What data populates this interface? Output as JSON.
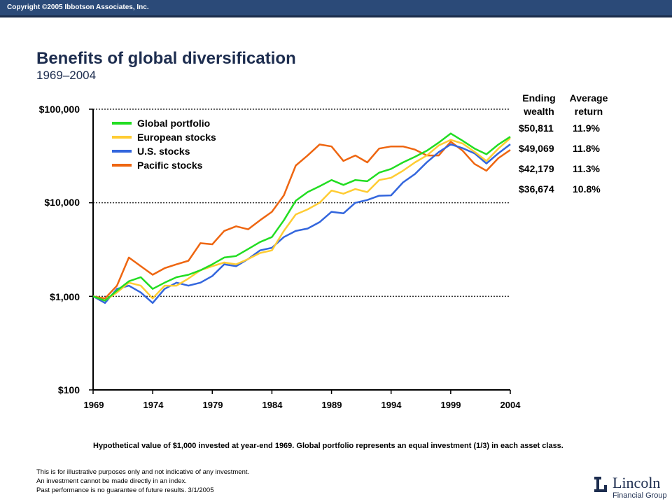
{
  "header": {
    "copyright": "Copyright ©2005 Ibbotson Associates, Inc."
  },
  "title": "Benefits of global diversification",
  "subtitle": "1969–2004",
  "table": {
    "col1": [
      "Ending",
      "wealth"
    ],
    "col2": [
      "Average",
      "return"
    ],
    "rows": [
      {
        "wealth": "$50,811",
        "ret": "11.9%"
      },
      {
        "wealth": "$49,069",
        "ret": "11.8%"
      },
      {
        "wealth": "$42,179",
        "ret": "11.3%"
      },
      {
        "wealth": "$36,674",
        "ret": "10.8%"
      }
    ]
  },
  "legend": [
    {
      "label": "Global portfolio",
      "color": "#22dd22"
    },
    {
      "label": "European stocks",
      "color": "#ffcc33"
    },
    {
      "label": "U.S. stocks",
      "color": "#3366dd"
    },
    {
      "label": "Pacific stocks",
      "color": "#ee6611"
    }
  ],
  "caption": "Hypothetical value of $1,000 invested at year-end 1969. Global portfolio represents an equal investment (1/3) in each asset class.",
  "notes": [
    "This is for illustrative purposes only and not indicative of any investment.",
    "An investment cannot be made directly in an index.",
    "Past performance is no guarantee of future results. 3/1/2005"
  ],
  "logo": {
    "name": "Lincoln",
    "sub": "Financial Group"
  },
  "chart_data": {
    "type": "line",
    "title": "Benefits of global diversification",
    "xlabel": "",
    "ylabel": "",
    "y_scale": "log",
    "ylim": [
      100,
      100000
    ],
    "xlim": [
      1969,
      2004
    ],
    "y_ticks": [
      "$100",
      "$1,000",
      "$10,000",
      "$100,000"
    ],
    "y_tick_values": [
      100,
      1000,
      10000,
      100000
    ],
    "x_ticks": [
      "1969",
      "1974",
      "1979",
      "1984",
      "1989",
      "1994",
      "1999",
      "2004"
    ],
    "x_tick_values": [
      1969,
      1974,
      1979,
      1984,
      1989,
      1994,
      1999,
      2004
    ],
    "grid": "dotted horizontal at $1,000, $10,000, $100,000",
    "legend_position": "top-left",
    "series": [
      {
        "name": "Global portfolio",
        "color": "#22dd22",
        "x": [
          1969,
          1970,
          1971,
          1972,
          1973,
          1974,
          1975,
          1976,
          1977,
          1978,
          1979,
          1980,
          1981,
          1982,
          1983,
          1984,
          1985,
          1986,
          1987,
          1988,
          1989,
          1990,
          1991,
          1992,
          1993,
          1994,
          1995,
          1996,
          1997,
          1998,
          1999,
          2000,
          2001,
          2002,
          2003,
          2004
        ],
        "y": [
          1000,
          900,
          1150,
          1450,
          1600,
          1200,
          1400,
          1600,
          1700,
          1900,
          2200,
          2600,
          2700,
          3200,
          3800,
          4300,
          6500,
          10500,
          13000,
          15000,
          17500,
          15500,
          17500,
          17000,
          21000,
          23000,
          27000,
          31000,
          36000,
          44000,
          55000,
          46000,
          38000,
          33000,
          42000,
          50811
        ]
      },
      {
        "name": "European stocks",
        "color": "#ffcc33",
        "x": [
          1969,
          1970,
          1971,
          1972,
          1973,
          1974,
          1975,
          1976,
          1977,
          1978,
          1979,
          1980,
          1981,
          1982,
          1983,
          1984,
          1985,
          1986,
          1987,
          1988,
          1989,
          1990,
          1991,
          1992,
          1993,
          1994,
          1995,
          1996,
          1997,
          1998,
          1999,
          2000,
          2001,
          2002,
          2003,
          2004
        ],
        "y": [
          1000,
          900,
          1100,
          1400,
          1300,
          950,
          1300,
          1300,
          1550,
          1900,
          2100,
          2300,
          2200,
          2500,
          2900,
          3100,
          5000,
          7500,
          8500,
          10000,
          13500,
          12500,
          14000,
          13000,
          17500,
          18500,
          22000,
          27000,
          32000,
          41000,
          47000,
          43000,
          35000,
          28000,
          38000,
          49069
        ]
      },
      {
        "name": "U.S. stocks",
        "color": "#3366dd",
        "x": [
          1969,
          1970,
          1971,
          1972,
          1973,
          1974,
          1975,
          1976,
          1977,
          1978,
          1979,
          1980,
          1981,
          1982,
          1983,
          1984,
          1985,
          1986,
          1987,
          1988,
          1989,
          1990,
          1991,
          1992,
          1993,
          1994,
          1995,
          1996,
          1997,
          1998,
          1999,
          2000,
          2001,
          2002,
          2003,
          2004
        ],
        "y": [
          1000,
          850,
          1200,
          1300,
          1100,
          850,
          1200,
          1400,
          1300,
          1400,
          1650,
          2200,
          2100,
          2500,
          3100,
          3300,
          4300,
          5000,
          5300,
          6200,
          8000,
          7700,
          10000,
          10700,
          11900,
          12000,
          16500,
          20300,
          27100,
          34800,
          42100,
          38300,
          33700,
          26300,
          33800,
          42179
        ]
      },
      {
        "name": "Pacific stocks",
        "color": "#ee6611",
        "x": [
          1969,
          1970,
          1971,
          1972,
          1973,
          1974,
          1975,
          1976,
          1977,
          1978,
          1979,
          1980,
          1981,
          1982,
          1983,
          1984,
          1985,
          1986,
          1987,
          1988,
          1989,
          1990,
          1991,
          1992,
          1993,
          1994,
          1995,
          1996,
          1997,
          1998,
          1999,
          2000,
          2001,
          2002,
          2003,
          2004
        ],
        "y": [
          1000,
          950,
          1300,
          2600,
          2100,
          1700,
          2000,
          2200,
          2400,
          3700,
          3600,
          5000,
          5600,
          5200,
          6500,
          8000,
          12000,
          25000,
          32000,
          42000,
          40000,
          28000,
          32000,
          27000,
          38000,
          40000,
          40000,
          37000,
          32000,
          32000,
          45000,
          36000,
          26000,
          22000,
          30000,
          36674
        ]
      }
    ]
  }
}
